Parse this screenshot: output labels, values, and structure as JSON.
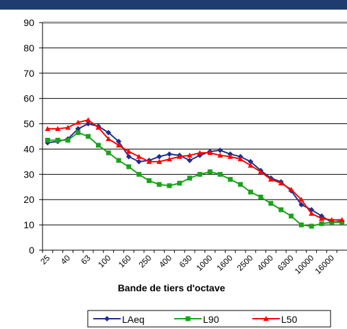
{
  "chart_data": {
    "type": "line",
    "x_label": "Bande de tiers d'octave",
    "categories": [
      "25",
      null,
      "40",
      null,
      "63",
      null,
      "100",
      null,
      "160",
      null,
      "250",
      null,
      "400",
      null,
      "630",
      null,
      "1000",
      null,
      "1600",
      null,
      "2500",
      null,
      "4000",
      null,
      "6300",
      null,
      "10000",
      null,
      "16000",
      null
    ],
    "series": [
      {
        "name": "LAeq",
        "color": "#1f2f8a",
        "marker": "diamond",
        "values": [
          42.5,
          43,
          44,
          48,
          50,
          49,
          46.5,
          43,
          37,
          35,
          35.5,
          37,
          38,
          37.5,
          35.5,
          37.5,
          39,
          39.5,
          38,
          37,
          35,
          31.5,
          28.5,
          27,
          23.5,
          18,
          16,
          13.5,
          11,
          11.5
        ]
      },
      {
        "name": "L90",
        "color": "#1aa31a",
        "marker": "square",
        "values": [
          43.5,
          43.5,
          43.5,
          46.5,
          45,
          41.5,
          38.5,
          35.5,
          33,
          30,
          27.5,
          26,
          25.5,
          26.5,
          28.5,
          30,
          31,
          30,
          28,
          26,
          23,
          21,
          18.5,
          16,
          13.5,
          10,
          9.5,
          10.5,
          11,
          11
        ]
      },
      {
        "name": "L50",
        "color": "#ff0000",
        "marker": "triangle",
        "values": [
          48,
          48,
          48.5,
          50.5,
          51.5,
          48.5,
          44,
          41.5,
          39,
          37,
          35,
          35,
          36,
          37,
          37.5,
          38.5,
          38.5,
          37.5,
          37,
          36,
          33.5,
          31,
          28,
          26.5,
          24,
          20,
          14.5,
          12.5,
          12,
          12
        ]
      }
    ],
    "ylim": [
      0,
      90
    ],
    "yticks": [
      0,
      10,
      20,
      30,
      40,
      50,
      60,
      70,
      80,
      90
    ],
    "grid": true
  }
}
